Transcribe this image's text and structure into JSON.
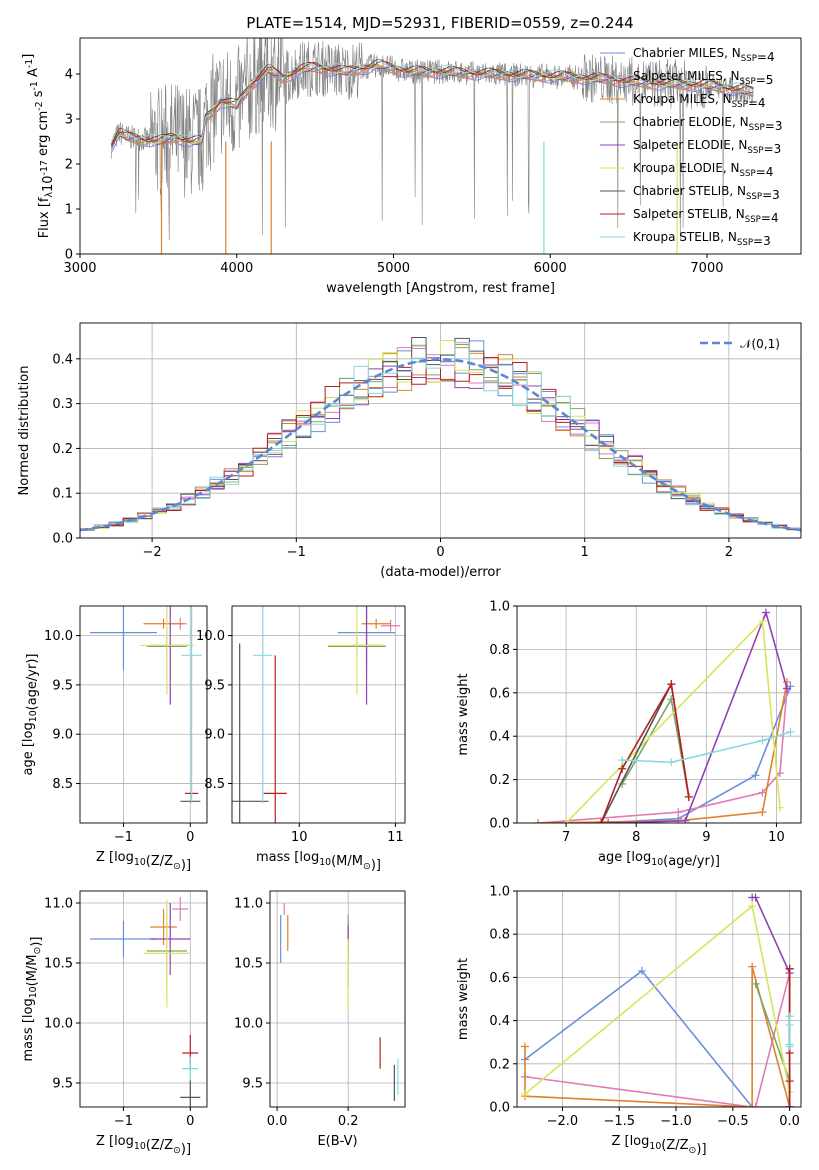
{
  "title": "PLATE=1514, MJD=52931, FIBERID=0559, z=0.244",
  "models": [
    {
      "name": "Chabrier MILES, N$_{SSP}$=4",
      "color": "#6b8fdb"
    },
    {
      "name": "Salpeter MILES, N$_{SSP}$=5",
      "color": "#e27ab4"
    },
    {
      "name": "Kroupa MILES, N$_{SSP}$=4",
      "color": "#e0812c"
    },
    {
      "name": "Chabrier ELODIE, N$_{SSP}$=3",
      "color": "#7aa86a"
    },
    {
      "name": "Salpeter ELODIE, N$_{SSP}$=3",
      "color": "#9440b5"
    },
    {
      "name": "Kroupa ELODIE, N$_{SSP}$=4",
      "color": "#d6e65a"
    },
    {
      "name": "Chabrier STELIB, N$_{SSP}$=3",
      "color": "#555555"
    },
    {
      "name": "Salpeter STELIB, N$_{SSP}$=4",
      "color": "#b81e1e"
    },
    {
      "name": "Kroupa STELIB, N$_{SSP}$=3",
      "color": "#84d8df"
    }
  ],
  "chart_data": [
    {
      "type": "line",
      "id": "spectrum",
      "xlabel": "wavelength [Angstrom, rest frame]",
      "ylabel": "Flux [f$_\\lambda$10$^{-17}$ erg cm$^{-2}$ s$^{-1}$ A$^{-1}$]",
      "xlim": [
        3000,
        7600
      ],
      "ylim": [
        0,
        4.8
      ],
      "xticks": [
        3000,
        4000,
        5000,
        6000,
        7000
      ],
      "yticks": [
        0,
        1,
        2,
        3,
        4
      ],
      "x_range_data": [
        3200,
        7300
      ],
      "data_color": "#808080",
      "continuum_points": [
        [
          3200,
          2.4
        ],
        [
          3250,
          2.7
        ],
        [
          3300,
          2.6
        ],
        [
          3400,
          2.55
        ],
        [
          3500,
          2.5
        ],
        [
          3600,
          2.6
        ],
        [
          3700,
          2.5
        ],
        [
          3780,
          2.5
        ],
        [
          3800,
          3.0
        ],
        [
          3900,
          3.4
        ],
        [
          4000,
          3.3
        ],
        [
          4100,
          3.8
        ],
        [
          4200,
          4.1
        ],
        [
          4300,
          3.9
        ],
        [
          4400,
          4.1
        ],
        [
          4500,
          4.15
        ],
        [
          4700,
          4.05
        ],
        [
          4900,
          4.2
        ],
        [
          5100,
          4.05
        ],
        [
          5300,
          4.05
        ],
        [
          5600,
          4.0
        ],
        [
          6000,
          3.95
        ],
        [
          6300,
          3.9
        ],
        [
          6600,
          3.8
        ],
        [
          7000,
          3.75
        ],
        [
          7300,
          3.6
        ]
      ]
    },
    {
      "type": "histogram",
      "id": "residuals",
      "xlabel": "(data-model)/error",
      "ylabel": "Normed distribution",
      "xlim": [
        -2.5,
        2.5
      ],
      "ylim": [
        0,
        0.48
      ],
      "xticks": [
        -2,
        -1,
        0,
        1,
        2
      ],
      "yticks": [
        0.0,
        0.1,
        0.2,
        0.3,
        0.4
      ],
      "legend": "$\\mathcal{N}(0,1)$",
      "bin_width": 0.1
    },
    {
      "type": "scatter",
      "id": "age-vs-Z",
      "xlabel": "Z [log$_{10}$(Z/Z$_\\odot$)]",
      "ylabel": "age  [log$_{10}$($age/yr$)]",
      "xlim": [
        -1.65,
        0.25
      ],
      "ylim": [
        8.1,
        10.3
      ],
      "xticks": [
        -1,
        0
      ],
      "yticks": [
        8.5,
        9.0,
        9.5,
        10.0
      ],
      "points": [
        {
          "m": 0,
          "x": -1.0,
          "xe": 0.5,
          "y": 10.03,
          "ye": 0.38
        },
        {
          "m": 1,
          "x": -0.15,
          "xe": 0.1,
          "y": 10.12,
          "ye": 0.06
        },
        {
          "m": 2,
          "x": -0.4,
          "xe": 0.3,
          "y": 10.12,
          "ye": 0.05
        },
        {
          "m": 3,
          "x": -0.35,
          "xe": 0.3,
          "y": 9.89,
          "ye": 0.1
        },
        {
          "m": 4,
          "x": -0.3,
          "xe": 0.3,
          "y": 9.9,
          "ye": 0.6
        },
        {
          "m": 5,
          "x": -0.35,
          "xe": 0.4,
          "y": 9.9,
          "ye": 0.5
        },
        {
          "m": 6,
          "x": 0.0,
          "xe": 0.15,
          "y": 8.32,
          "ye": 0.0
        },
        {
          "m": 7,
          "x": 0.02,
          "xe": 0.1,
          "y": 8.4,
          "ye": 0.0
        },
        {
          "m": 8,
          "x": 0.02,
          "xe": 0.15,
          "y": 9.8,
          "ye": 1.5
        }
      ]
    },
    {
      "type": "scatter",
      "id": "age-vs-mass",
      "xlabel": "mass [log$_{10}$(M/M$_\\odot$)]",
      "ylabel": "",
      "xlim": [
        9.3,
        11.1
      ],
      "ylim": [
        8.1,
        10.3
      ],
      "xticks": [
        10,
        11
      ],
      "yticks": [
        8.5,
        9.0,
        9.5,
        10.0
      ],
      "points": [
        {
          "m": 0,
          "x": 10.7,
          "xe": 0.3,
          "y": 10.03,
          "ye": 0.38
        },
        {
          "m": 1,
          "x": 10.95,
          "xe": 0.1,
          "y": 10.1,
          "ye": 0.06
        },
        {
          "m": 2,
          "x": 10.8,
          "xe": 0.15,
          "y": 10.12,
          "ye": 0.05
        },
        {
          "m": 3,
          "x": 10.6,
          "xe": 0.3,
          "y": 9.89,
          "ye": 0.1
        },
        {
          "m": 4,
          "x": 10.7,
          "xe": 0.15,
          "y": 9.9,
          "ye": 0.6
        },
        {
          "m": 5,
          "x": 10.6,
          "xe": 0.3,
          "y": 9.9,
          "ye": 0.5
        },
        {
          "m": 6,
          "x": 9.38,
          "xe": 0.3,
          "y": 8.32,
          "ye": 1.6
        },
        {
          "m": 7,
          "x": 9.75,
          "xe": 0.12,
          "y": 8.4,
          "ye": 1.4
        },
        {
          "m": 8,
          "x": 9.62,
          "xe": 0.1,
          "y": 9.8,
          "ye": 1.5
        }
      ]
    },
    {
      "type": "line",
      "id": "weight-vs-age",
      "xlabel": "age  [log$_{10}$($age/yr$)]",
      "ylabel": "mass weight",
      "xlim": [
        6.3,
        10.35
      ],
      "ylim": [
        0,
        1.0
      ],
      "xticks": [
        7,
        8,
        9,
        10
      ],
      "yticks": [
        0.0,
        0.2,
        0.4,
        0.6,
        0.8,
        1.0
      ],
      "series": [
        {
          "m": 0,
          "x": [
            7.5,
            8.6,
            9.7,
            10.2
          ],
          "y": [
            0.0,
            0.02,
            0.22,
            0.63
          ]
        },
        {
          "m": 1,
          "x": [
            6.6,
            8.6,
            9.8,
            10.05,
            10.15
          ],
          "y": [
            0.0,
            0.05,
            0.14,
            0.23,
            0.62
          ]
        },
        {
          "m": 2,
          "x": [
            6.6,
            8.6,
            9.8,
            10.15
          ],
          "y": [
            0.0,
            0.01,
            0.05,
            0.65
          ]
        },
        {
          "m": 3,
          "x": [
            7.8,
            8.5,
            8.75
          ],
          "y": [
            0.18,
            0.57,
            0.12
          ]
        },
        {
          "m": 4,
          "x": [
            7.6,
            8.7,
            9.85,
            10.15
          ],
          "y": [
            0.0,
            0.01,
            0.97,
            0.62
          ]
        },
        {
          "m": 5,
          "x": [
            7.0,
            9.8,
            10.05
          ],
          "y": [
            0.0,
            0.93,
            0.07
          ]
        },
        {
          "m": 6,
          "x": [
            7.5,
            8.5,
            8.75
          ],
          "y": [
            0.0,
            0.64,
            0.12
          ]
        },
        {
          "m": 7,
          "x": [
            7.5,
            7.8,
            8.5,
            8.75
          ],
          "y": [
            0.0,
            0.25,
            0.64,
            0.12
          ]
        },
        {
          "m": 8,
          "x": [
            7.8,
            8.5,
            9.8,
            10.2
          ],
          "y": [
            0.29,
            0.28,
            0.38,
            0.42
          ]
        }
      ]
    },
    {
      "type": "scatter",
      "id": "mass-vs-Z",
      "xlabel": "Z [log$_{10}$(Z/Z$_\\odot$)]",
      "ylabel": "mass [log$_{10}$(M/M$_\\odot$)]",
      "xlim": [
        -1.65,
        0.25
      ],
      "ylim": [
        9.3,
        11.1
      ],
      "xticks": [
        -1,
        0
      ],
      "yticks": [
        9.5,
        10.0,
        10.5,
        11.0
      ],
      "points": [
        {
          "m": 0,
          "x": -1.0,
          "xe": 0.5,
          "y": 10.7,
          "ye": 0.15
        },
        {
          "m": 1,
          "x": -0.15,
          "xe": 0.12,
          "y": 10.95,
          "ye": 0.1
        },
        {
          "m": 2,
          "x": -0.4,
          "xe": 0.2,
          "y": 10.8,
          "ye": 0.15
        },
        {
          "m": 3,
          "x": -0.35,
          "xe": 0.3,
          "y": 10.6,
          "ye": 0.3
        },
        {
          "m": 4,
          "x": -0.3,
          "xe": 0.3,
          "y": 10.7,
          "ye": 0.3
        },
        {
          "m": 5,
          "x": -0.35,
          "xe": 0.35,
          "y": 10.58,
          "ye": 0.45
        },
        {
          "m": 6,
          "x": 0.0,
          "xe": 0.15,
          "y": 9.38,
          "ye": 0.15
        },
        {
          "m": 7,
          "x": 0.0,
          "xe": 0.12,
          "y": 9.75,
          "ye": 0.15
        },
        {
          "m": 8,
          "x": 0.0,
          "xe": 0.12,
          "y": 9.62,
          "ye": 0.1
        }
      ]
    },
    {
      "type": "scatter",
      "id": "mass-vs-EBV",
      "xlabel": "E(B-V)",
      "ylabel": "",
      "xlim": [
        -0.02,
        0.36
      ],
      "ylim": [
        9.3,
        11.1
      ],
      "xticks": [
        0.0,
        0.2
      ],
      "yticks": [
        9.5,
        10.0,
        10.5,
        11.0
      ],
      "points": [
        {
          "m": 0,
          "x": 0.01,
          "xe": 0,
          "y": 10.7,
          "ye": 0.2
        },
        {
          "m": 1,
          "x": 0.02,
          "xe": 0,
          "y": 10.95,
          "ye": 0.05
        },
        {
          "m": 2,
          "x": 0.03,
          "xe": 0,
          "y": 10.75,
          "ye": 0.15
        },
        {
          "m": 3,
          "x": 0.2,
          "xe": 0,
          "y": 10.6,
          "ye": 0.3
        },
        {
          "m": 4,
          "x": 0.2,
          "xe": 0,
          "y": 10.7,
          "ye": 0.12
        },
        {
          "m": 5,
          "x": 0.2,
          "xe": 0,
          "y": 10.4,
          "ye": 0.3
        },
        {
          "m": 6,
          "x": 0.33,
          "xe": 0,
          "y": 9.5,
          "ye": 0.15
        },
        {
          "m": 7,
          "x": 0.29,
          "xe": 0,
          "y": 9.75,
          "ye": 0.13
        },
        {
          "m": 8,
          "x": 0.34,
          "xe": 0,
          "y": 9.55,
          "ye": 0.15
        }
      ]
    },
    {
      "type": "line",
      "id": "weight-vs-Z",
      "xlabel": "Z [log$_{10}$(Z/Z$_\\odot$)]",
      "ylabel": "mass weight",
      "xlim": [
        -2.4,
        0.1
      ],
      "ylim": [
        0,
        1.0
      ],
      "xticks": [
        -2.0,
        -1.5,
        -1.0,
        -0.5,
        0.0
      ],
      "yticks": [
        0.0,
        0.2,
        0.4,
        0.6,
        0.8,
        1.0
      ],
      "series": [
        {
          "m": 0,
          "x": [
            -2.33,
            -1.3,
            -0.33,
            0.0
          ],
          "y": [
            0.22,
            0.63,
            0.0,
            0.0
          ]
        },
        {
          "m": 1,
          "x": [
            -2.33,
            -0.33,
            -0.3,
            0.0
          ],
          "y": [
            0.14,
            0.0,
            0.0,
            0.62
          ]
        },
        {
          "m": 2,
          "x": [
            -2.33,
            -2.33,
            -0.33,
            -0.33,
            0.0
          ],
          "y": [
            0.28,
            0.05,
            0.0,
            0.65,
            0.0
          ]
        },
        {
          "m": 3,
          "x": [
            -0.3,
            0.0,
            0.0
          ],
          "y": [
            0.57,
            0.12,
            0.0
          ]
        },
        {
          "m": 4,
          "x": [
            -0.33,
            -0.3,
            0.0,
            0.0
          ],
          "y": [
            0.97,
            0.97,
            0.62,
            0.0
          ]
        },
        {
          "m": 5,
          "x": [
            -2.33,
            -0.33,
            0.0
          ],
          "y": [
            0.06,
            0.93,
            0.07
          ]
        },
        {
          "m": 6,
          "x": [
            0.0,
            0.0
          ],
          "y": [
            0.0,
            0.64
          ]
        },
        {
          "m": 7,
          "x": [
            0.0,
            0.0,
            0.0,
            0.0
          ],
          "y": [
            0.0,
            0.25,
            0.64,
            0.12
          ]
        },
        {
          "m": 8,
          "x": [
            0.0,
            0.0,
            0.0,
            0.0
          ],
          "y": [
            0.29,
            0.28,
            0.38,
            0.42
          ]
        }
      ]
    }
  ]
}
